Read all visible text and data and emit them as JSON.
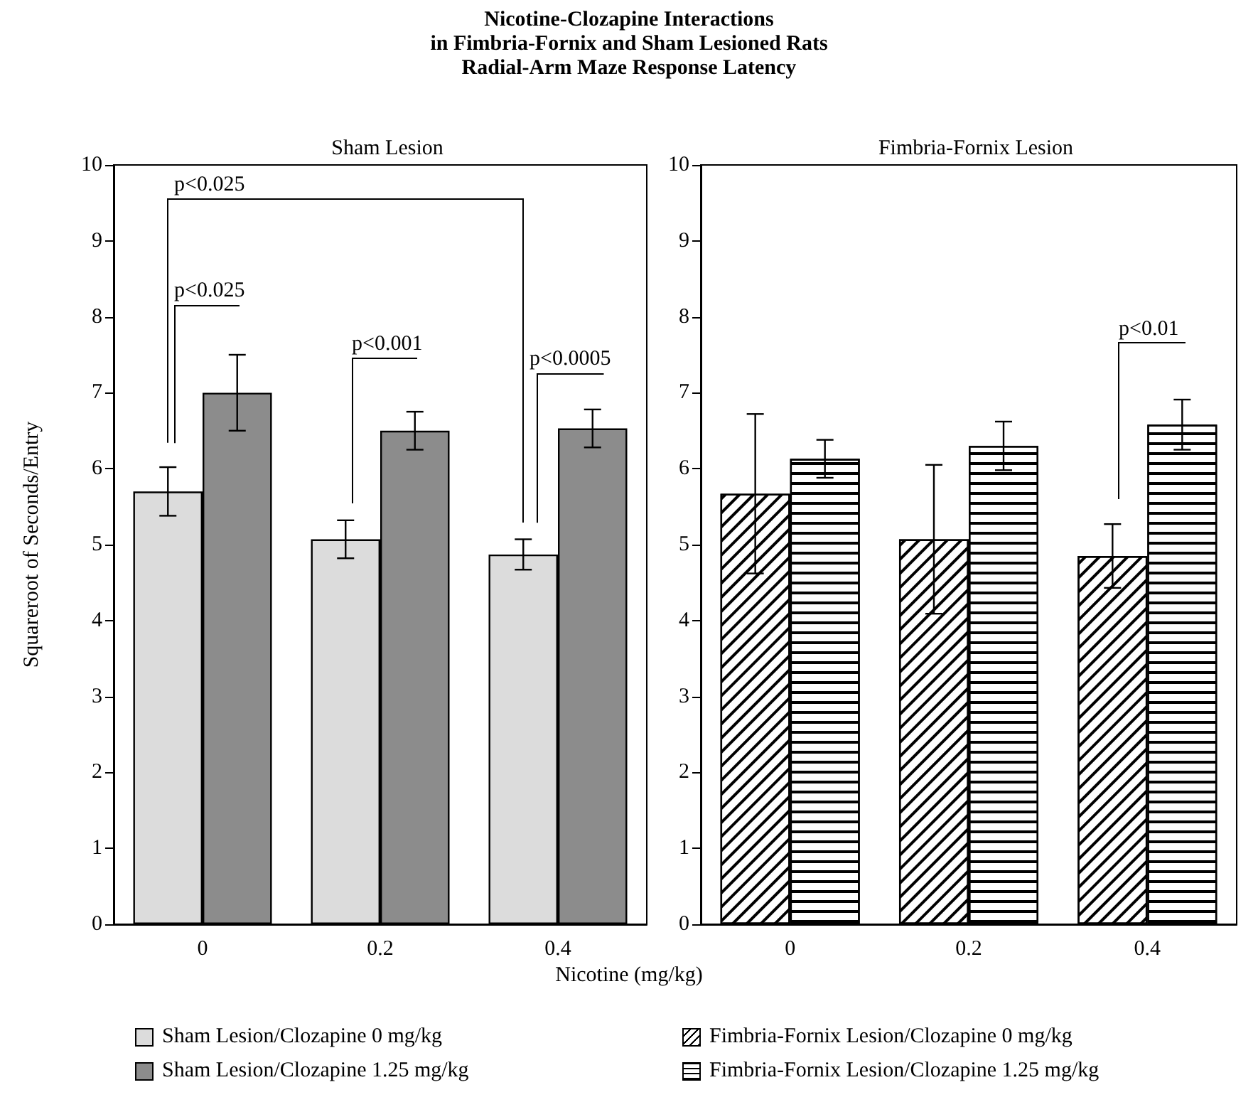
{
  "chart_data": [
    {
      "type": "bar",
      "title": "Nicotine-Clozapine Interactions\nin Fimbria-Fornix and Sham Lesioned Rats\nRadial-Arm Maze Response Latency",
      "subtitle": "Sham Lesion",
      "xlabel": "Nicotine (mg/kg)",
      "ylabel": "Squareroot of Seconds/Entry",
      "categories": [
        "0",
        "0.2",
        "0.4"
      ],
      "series": [
        {
          "name": "Sham Lesion/Clozapine 0 mg/kg",
          "color": "#dcdcdc",
          "values": [
            5.7,
            5.07,
            4.87
          ],
          "errors": [
            0.32,
            0.25,
            0.2
          ]
        },
        {
          "name": "Sham Lesion/Clozapine 1.25 mg/kg",
          "color": "#8c8c8c",
          "values": [
            7.0,
            6.5,
            6.53
          ],
          "errors": [
            0.5,
            0.25,
            0.25
          ]
        }
      ],
      "ylim": [
        0,
        10
      ],
      "yticks": [
        0,
        1,
        2,
        3,
        4,
        5,
        6,
        7,
        8,
        9,
        10
      ],
      "grid": false,
      "legend": "bottom",
      "annotations": [
        "p<0.025",
        "p<0.025",
        "p<0.001",
        "p<0.0005"
      ]
    },
    {
      "type": "bar",
      "subtitle": "Fimbria-Fornix Lesion",
      "categories": [
        "0",
        "0.2",
        "0.4"
      ],
      "series": [
        {
          "name": "Fimbria-Fornix Lesion/Clozapine 0 mg/kg",
          "color": "#ffffff",
          "values": [
            5.67,
            5.07,
            4.85
          ],
          "errors": [
            1.05,
            0.98,
            0.42
          ]
        },
        {
          "name": "Fimbria-Fornix Lesion/Clozapine 1.25 mg/kg",
          "color": "#ffffff",
          "values": [
            6.13,
            6.3,
            6.58
          ],
          "errors": [
            0.25,
            0.32,
            0.33
          ]
        }
      ],
      "ylim": [
        0,
        10
      ],
      "yticks": [
        0,
        1,
        2,
        3,
        4,
        5,
        6,
        7,
        8,
        9,
        10
      ],
      "grid": false,
      "legend": "bottom",
      "annotations": [
        "p<0.01"
      ]
    }
  ]
}
